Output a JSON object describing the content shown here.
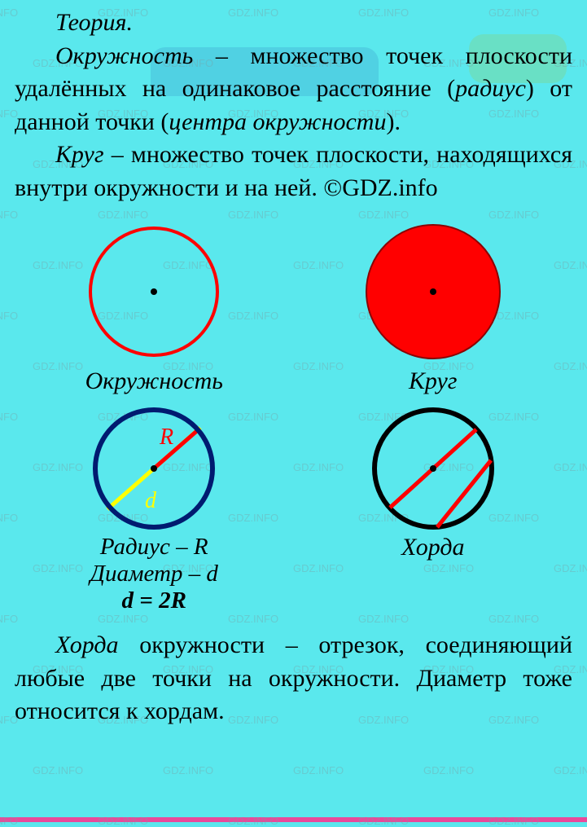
{
  "watermark_text": "GDZ.INFO",
  "theory_title": "Теория.",
  "para1_parts": {
    "p1": "Окружность",
    "p2": " – множество точек плоскости удалённых на одинаковое рас­стояние (",
    "p3": "радиус",
    "p4": ") от данной точки (",
    "p5": "цен­тра окружности",
    "p6": ")."
  },
  "para2_parts": {
    "p1": "Круг",
    "p2": " – множество точек плоскости, находящихся внутри окружности и на ней. ©GDZ.info"
  },
  "para3_parts": {
    "p1": "Хорда",
    "p2": " окружности – отрезок, соеди­няющий любые две точки на окружно­сти. Диаметр тоже относится к хордам."
  },
  "diagrams": {
    "circle": {
      "label": "Окружность",
      "stroke": "#ff0000",
      "stroke_width": 4,
      "fill": "none",
      "center_dot": "#000000"
    },
    "disk": {
      "label": "Круг",
      "stroke": "#8b0000",
      "stroke_width": 2,
      "fill": "#ff0000",
      "center_dot": "#000000"
    },
    "radius_diameter": {
      "label1": "Радиус – R",
      "label2": "Диаметр – d",
      "formula": "d = 2R",
      "circle_stroke": "#001b70",
      "circle_stroke_width": 6,
      "radius_color": "#ff0000",
      "radius_label": "R",
      "radius_label_color": "#ff0000",
      "diameter_color": "#ffff00",
      "diameter_label": "d",
      "diameter_label_color": "#ffff00",
      "center_dot": "#000000"
    },
    "chord": {
      "label": "Хорда",
      "circle_stroke": "#000000",
      "circle_stroke_width": 6,
      "chord_color": "#ff0000",
      "chord_width": 5,
      "center_dot": "#000000"
    }
  },
  "colors": {
    "background": "#5ae8ed",
    "bottom_bar": "#e84a9a"
  }
}
